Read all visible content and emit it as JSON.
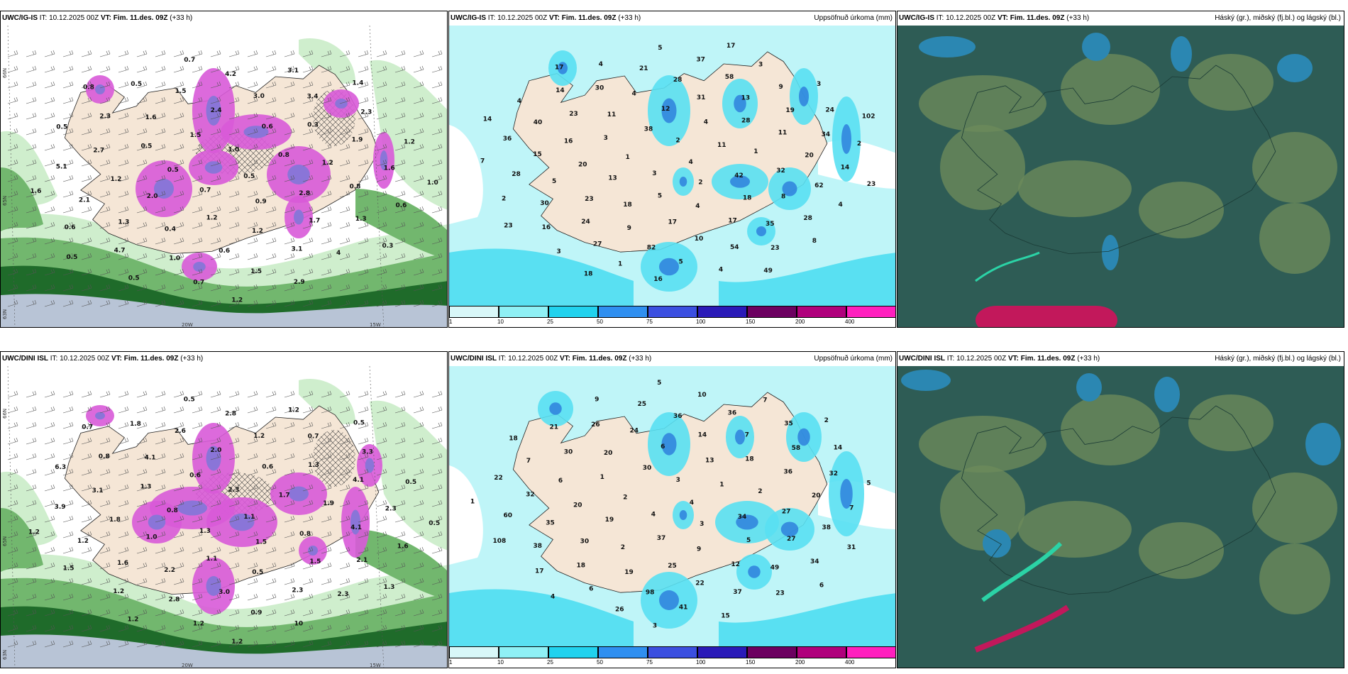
{
  "colors": {
    "land": "#f5e6d6",
    "sea_white": "#ffffff",
    "green_light": "#cfeecd",
    "green_mid": "#72b76e",
    "green_dark": "#1f6b2a",
    "magenta": "#d85ad8",
    "violet": "#8a75d8",
    "cyan_light": "#bff5f8",
    "cyan": "#59e0f2",
    "blue": "#2a7bdb",
    "cloud_dark": "#2e5c55",
    "cloud_mid": "#6c8a5a",
    "cloud_blue": "#2b87b2",
    "cloud_pink": "#c2185b"
  },
  "rows": [
    {
      "model": "UWC/IG-IS",
      "it": "IT: 10.12.2025 00Z",
      "vt_label": "VT:",
      "vt": "Fim. 11.des. 09Z",
      "lead": "(+33 h)",
      "panel1": {
        "axis_n66": "66N",
        "axis_n65": "65N",
        "axis_n63": "63N",
        "axis_20w": "20W",
        "axis_15w": "15W",
        "labels": [
          "0.5",
          "0.7",
          "1.0",
          "0.9",
          "0.5",
          "0.8",
          "1.2",
          "1.5",
          "2.8",
          "2.0",
          "0.6",
          "1.2",
          "0.5",
          "1.2",
          "0.4",
          "2.4",
          "1.7",
          "1.2",
          "0.3",
          "0.6",
          "1.6",
          "0.8",
          "1.3",
          "3.0",
          "3.1",
          "2.7",
          "1.9",
          "1.0",
          "1.5",
          "1.3",
          "2.1",
          "3.4",
          "1.5",
          "2.3",
          "1.6",
          "4.7",
          "4.2",
          "4",
          "5.1",
          "2.3",
          "0.7",
          "0.5",
          "0.6",
          "0.6",
          "3.1",
          "2.9",
          "0.5",
          "1.2",
          "0.5",
          "0.7",
          "0.3",
          "1.6",
          "1.4",
          "1.2",
          "0.8",
          "1.0",
          "0.5"
        ]
      },
      "panel2": {
        "title_right": "Uppsöfnuð úrkoma (mm)",
        "numbers": [
          "4",
          "3",
          "2",
          "2",
          "1",
          "11",
          "5",
          "38",
          "42",
          "13",
          "4",
          "4",
          "3",
          "1",
          "18",
          "12",
          "18",
          "20",
          "28",
          "17",
          "11",
          "32",
          "23",
          "31",
          "17",
          "16",
          "11",
          "9",
          "4",
          "8",
          "5",
          "13",
          "10",
          "23",
          "20",
          "24",
          "28",
          "35",
          "15",
          "19",
          "82",
          "30",
          "62",
          "30",
          "58",
          "54",
          "40",
          "34",
          "27",
          "21",
          "28",
          "28",
          "9",
          "5",
          "14",
          "14",
          "16",
          "37",
          "23",
          "36",
          "24",
          "1",
          "4",
          "4",
          "2",
          "3",
          "4",
          "4",
          "2",
          "3",
          "5",
          "8",
          "7",
          "3",
          "16",
          "17",
          "23",
          "23",
          "17",
          "49",
          "14",
          "102",
          "18"
        ],
        "legend_values": [
          "1",
          "10",
          "25",
          "50",
          "75",
          "100",
          "150",
          "200",
          "400"
        ],
        "legend_colors": [
          "#d8f7f8",
          "#8ff0f5",
          "#21d2ee",
          "#2f8ff0",
          "#3b4fe0",
          "#2a1ab8",
          "#6c0060",
          "#b0007c",
          "#ff1fbe",
          "#f8b8f4"
        ]
      },
      "panel3": {
        "title_right": "Háský (gr.), miðský (fj.bl.) og lágský (bl.)"
      }
    },
    {
      "model": "UWC/DINI ISL",
      "it": "IT: 10.12.2025 00Z",
      "vt_label": "VT:",
      "vt": "Fim. 11.des. 09Z",
      "lead": "(+33 h)",
      "panel1": {
        "axis_n66": "66N",
        "axis_n65": "65N",
        "axis_n63": "63N",
        "axis_20w": "20W",
        "axis_15w": "15W",
        "labels": [
          "1.1",
          "1.3",
          "2.3",
          "1.5",
          "0.8",
          "1.7",
          "1.1",
          "0.6",
          "0.8",
          "1.0",
          "0.6",
          "0.5",
          "1.3",
          "1.9",
          "2.2",
          "2.0",
          "1.5",
          "1.8",
          "1.3",
          "3.0",
          "4.1",
          "4.1",
          "1.6",
          "1.2",
          "2.3",
          "3.1",
          "4.1",
          "2.8",
          "2.6",
          "2.1",
          "1.2",
          "0.7",
          "0.9",
          "0.8",
          "2.3",
          "1.2",
          "2.8",
          "2.3",
          "3.9",
          "3.3",
          "1.2",
          "1.8",
          "1.6",
          "1.5",
          "1.2",
          "10",
          "6.3",
          "0.5",
          "1.2",
          "0.5",
          "1.3",
          "1.2",
          "0.5",
          "1.2",
          "0.7",
          "0.5"
        ]
      },
      "panel2": {
        "title_right": "Uppsöfnuð úrkoma (mm)",
        "numbers": [
          "4",
          "4",
          "3",
          "3",
          "2",
          "1",
          "37",
          "30",
          "34",
          "19",
          "13",
          "9",
          "1",
          "2",
          "2",
          "6",
          "5",
          "20",
          "18",
          "25",
          "20",
          "27",
          "30",
          "14",
          "12",
          "6",
          "36",
          "19",
          "24",
          "27",
          "35",
          "7",
          "22",
          "30",
          "20",
          "18",
          "36",
          "49",
          "32",
          "58",
          "98",
          "26",
          "38",
          "38",
          "36",
          "37",
          "7",
          "32",
          "6",
          "25",
          "34",
          "60",
          "35",
          "41",
          "21",
          "7",
          "17",
          "10",
          "23",
          "22",
          "14",
          "26",
          "9",
          "31",
          "108",
          "7",
          "15",
          "18",
          "5",
          "4",
          "5",
          "6",
          "1",
          "2",
          "3"
        ],
        "legend_values": [
          "1",
          "10",
          "25",
          "50",
          "75",
          "100",
          "150",
          "200",
          "400"
        ],
        "legend_colors": [
          "#d8f7f8",
          "#8ff0f5",
          "#21d2ee",
          "#2f8ff0",
          "#3b4fe0",
          "#2a1ab8",
          "#6c0060",
          "#b0007c",
          "#ff1fbe",
          "#f8b8f4"
        ]
      },
      "panel3": {
        "title_right": "Háský (gr.), miðský (fj.bl.) og lágský (bl.)"
      }
    }
  ]
}
